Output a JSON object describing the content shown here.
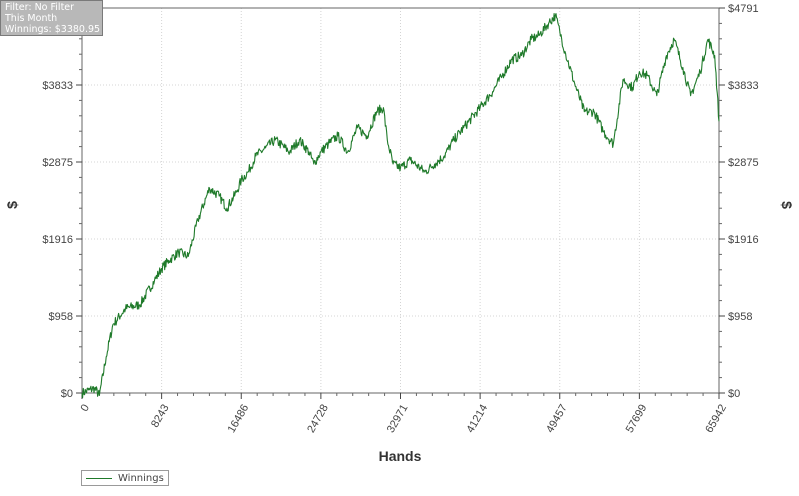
{
  "filter_box": {
    "filter": "Filter: No Filter",
    "period": "This Month",
    "winnings": "Winnings: $3380.95"
  },
  "chart_data": {
    "type": "line",
    "xlabel": "Hands",
    "ylabel": "$",
    "xlim": [
      0,
      65942
    ],
    "ylim": [
      0,
      4791
    ],
    "x_ticks": [
      "0",
      "8243",
      "16486",
      "24728",
      "32971",
      "41214",
      "49457",
      "57699",
      "65942"
    ],
    "y_ticks": [
      "$0",
      "$958",
      "$1916",
      "$2875",
      "$3833",
      "$4791"
    ],
    "grid": true,
    "legend_position": "bottom-left",
    "series": [
      {
        "name": "Winnings",
        "color": "#1f7a2a",
        "x": [
          0,
          800,
          1300,
          1800,
          2500,
          3200,
          4500,
          6000,
          7500,
          8243,
          9000,
          10000,
          11000,
          12000,
          13200,
          14200,
          15000,
          16000,
          16486,
          17200,
          18000,
          19000,
          20000,
          21500,
          22500,
          23500,
          24000,
          24728,
          25500,
          26500,
          27500,
          28500,
          29500,
          30500,
          31200,
          31600,
          32200,
          32971,
          34000,
          35500,
          36500,
          37500,
          38500,
          39500,
          41214,
          42500,
          43500,
          44500,
          45500,
          46500,
          47300,
          48300,
          49000,
          49457,
          50000,
          51000,
          52000,
          53000,
          54000,
          55000,
          56000,
          57000,
          57699,
          58500,
          59500,
          60500,
          61300,
          62200,
          63000,
          64000,
          64800,
          65500,
          65942
        ],
        "y": [
          0,
          40,
          60,
          -30,
          450,
          850,
          1050,
          1100,
          1400,
          1550,
          1650,
          1750,
          1700,
          2150,
          2550,
          2450,
          2300,
          2500,
          2650,
          2750,
          2950,
          3050,
          3150,
          3000,
          3150,
          3000,
          2850,
          3000,
          3100,
          3200,
          3000,
          3300,
          3200,
          3500,
          3550,
          3150,
          2850,
          2800,
          2900,
          2750,
          2850,
          2950,
          3150,
          3300,
          3550,
          3750,
          3950,
          4150,
          4200,
          4400,
          4450,
          4600,
          4700,
          4500,
          4250,
          3850,
          3500,
          3500,
          3250,
          3100,
          3900,
          3800,
          4000,
          3950,
          3700,
          4200,
          4400,
          4050,
          3700,
          4000,
          4400,
          4200,
          3380.95
        ]
      }
    ]
  }
}
